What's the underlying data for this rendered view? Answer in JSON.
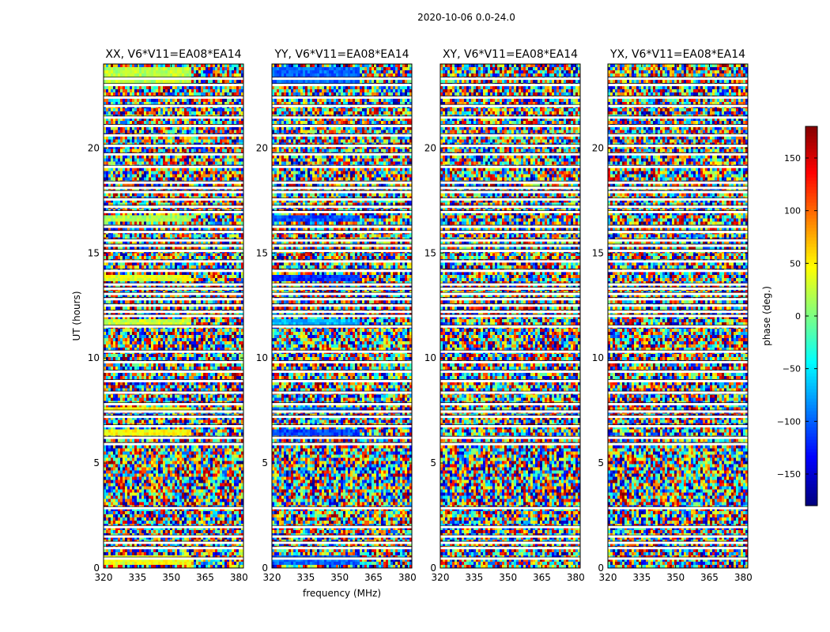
{
  "figure_title": "2020-10-06 0.0-24.0",
  "colorbar": {
    "label": "phase (deg.)",
    "ticks": [
      150,
      100,
      50,
      0,
      -50,
      -100,
      -150
    ],
    "range": [
      -180,
      180
    ],
    "colormap": "jet"
  },
  "chart_data": [
    {
      "type": "heatmap",
      "title": "XX, V6*V11=EA08*EA14",
      "xlabel": "",
      "ylabel": "UT (hours)",
      "xlim": [
        320,
        382
      ],
      "ylim": [
        0,
        24
      ],
      "xticks": [
        320,
        335,
        350,
        365,
        380
      ],
      "yticks": [
        0,
        5,
        10,
        15,
        20
      ],
      "value": "phase (deg.)",
      "coherent_bands": [
        {
          "ut": [
            0.1,
            0.6
          ],
          "phase": 40
        },
        {
          "ut": [
            6.3,
            6.6
          ],
          "phase": 45
        },
        {
          "ut": [
            7.5,
            7.7
          ],
          "phase": 45
        },
        {
          "ut": [
            11.6,
            11.9
          ],
          "phase": 25
        },
        {
          "ut": [
            13.6,
            14.0
          ],
          "phase": 35
        },
        {
          "ut": [
            16.5,
            16.8
          ],
          "phase": 15
        },
        {
          "ut": [
            23.0,
            23.9
          ],
          "phase": 20
        }
      ]
    },
    {
      "type": "heatmap",
      "title": "YY, V6*V11=EA08*EA14",
      "xlabel": "frequency (MHz)",
      "ylabel": "",
      "xlim": [
        320,
        382
      ],
      "ylim": [
        0,
        24
      ],
      "xticks": [
        320,
        335,
        350,
        365,
        380
      ],
      "yticks": [
        0,
        5,
        10,
        15,
        20
      ],
      "value": "phase (deg.)",
      "coherent_bands": [
        {
          "ut": [
            0.1,
            0.6
          ],
          "phase": -100
        },
        {
          "ut": [
            6.3,
            6.6
          ],
          "phase": -110
        },
        {
          "ut": [
            7.5,
            7.7
          ],
          "phase": -90
        },
        {
          "ut": [
            11.6,
            11.9
          ],
          "phase": -70
        },
        {
          "ut": [
            13.6,
            14.0
          ],
          "phase": -120
        },
        {
          "ut": [
            16.5,
            16.8
          ],
          "phase": -110
        },
        {
          "ut": [
            23.0,
            23.9
          ],
          "phase": -100
        }
      ]
    },
    {
      "type": "heatmap",
      "title": "XY, V6*V11=EA08*EA14",
      "xlabel": "",
      "ylabel": "",
      "xlim": [
        320,
        382
      ],
      "ylim": [
        0,
        24
      ],
      "xticks": [
        320,
        335,
        350,
        365,
        380
      ],
      "yticks": [
        0,
        5,
        10,
        15,
        20
      ],
      "value": "phase (deg.)",
      "coherent_bands": []
    },
    {
      "type": "heatmap",
      "title": "YX, V6*V11=EA08*EA14",
      "xlabel": "",
      "ylabel": "",
      "xlim": [
        320,
        382
      ],
      "ylim": [
        0,
        24
      ],
      "xticks": [
        320,
        335,
        350,
        365,
        380
      ],
      "yticks": [
        0,
        5,
        10,
        15,
        20
      ],
      "value": "phase (deg.)",
      "coherent_bands": []
    }
  ],
  "flagged_ut": [
    0.45,
    0.95,
    1.2,
    1.5,
    1.95,
    2.85,
    5.9,
    6.2,
    6.75,
    7.2,
    7.45,
    7.8,
    8.35,
    8.9,
    9.35,
    9.8,
    10.3,
    11.5,
    12.0,
    12.2,
    12.5,
    12.8,
    13.05,
    13.3,
    13.5,
    14.15,
    14.6,
    15.1,
    15.35,
    15.6,
    16.0,
    16.25,
    16.95,
    17.2,
    17.55,
    17.9,
    18.1,
    18.35,
    19.1,
    19.7,
    20.1,
    20.6,
    21.05,
    21.45,
    22.0,
    22.4,
    23.0,
    23.3
  ]
}
